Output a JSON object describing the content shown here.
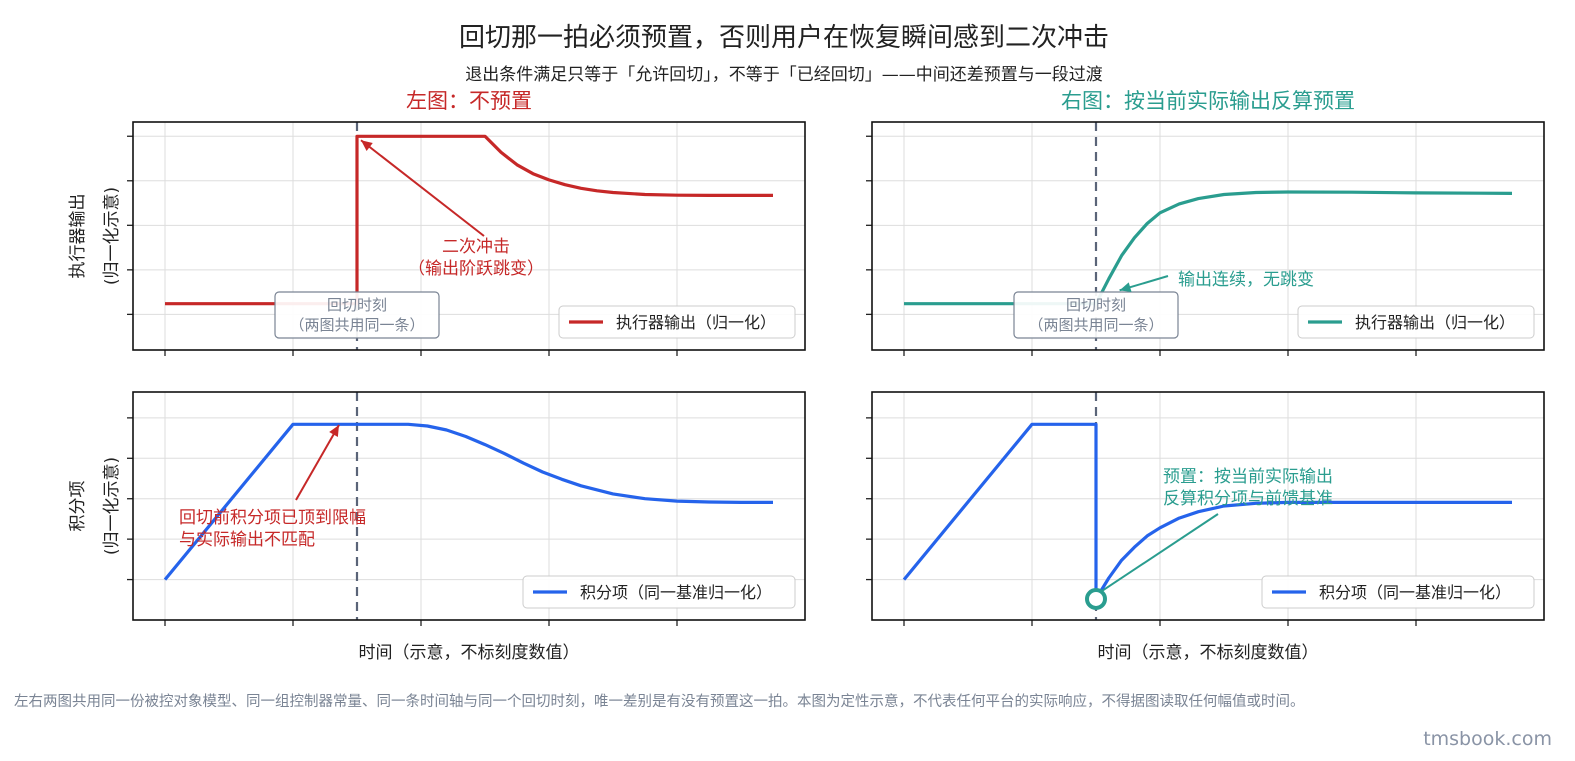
{
  "title": "回切那一拍必须预置，否则用户在恢复瞬间感到二次冲击",
  "subtitle": "退出条件满足只等于「允许回切」，不等于「已经回切」——中间还差预置与一段过渡",
  "footnote": "左右两图共用同一份被控对象模型、同一组控制器常量、同一条时间轴与同一个回切时刻，唯一差别是有没有预置这一拍。本图为定性示意，不代表任何平台的实际响应，不得据图读取任何幅值或时间。",
  "watermark": "tmsbook.com",
  "colors": {
    "red": "#c62828",
    "teal": "#2a9d8f",
    "blue": "#2563eb",
    "vline": "#5a6478",
    "grid": "#dddddd"
  },
  "chart_data": [
    {
      "type": "line",
      "panel": "top-left",
      "title": "左图：不预置",
      "ylabel": "执行器输出\n(归一化示意)",
      "legend": "执行器输出（归一化）",
      "legend_position": "lower right",
      "grid": true,
      "xlim": [
        -0.5,
        10.0
      ],
      "ylim": [
        -0.2,
        1.08
      ],
      "vline_x": 3.0,
      "vline_label": "回切时刻\n（两图共用同一条）",
      "annotations": [
        {
          "text": "二次冲击\n（输出阶跃跳变）",
          "x": 3.0,
          "y": 1.0
        }
      ],
      "series": [
        {
          "name": "执行器输出（归一化）",
          "x": [
            0,
            3.0,
            3.0,
            5.0,
            5.25,
            5.5,
            5.75,
            6.0,
            6.25,
            6.5,
            6.75,
            7.0,
            7.5,
            8.0,
            8.5,
            9.0,
            9.5
          ],
          "y": [
            0.06,
            0.06,
            1.0,
            1.0,
            0.91,
            0.84,
            0.79,
            0.755,
            0.728,
            0.708,
            0.694,
            0.684,
            0.673,
            0.669,
            0.668,
            0.668,
            0.668
          ]
        }
      ]
    },
    {
      "type": "line",
      "panel": "top-right",
      "title": "右图：按当前实际输出反算预置",
      "legend": "执行器输出（归一化）",
      "legend_position": "lower right",
      "grid": true,
      "xlim": [
        -0.5,
        10.0
      ],
      "ylim": [
        -0.2,
        1.08
      ],
      "vline_x": 3.0,
      "vline_label": "回切时刻\n（两图共用同一条）",
      "annotations": [
        {
          "text": "输出连续，无跳变",
          "x": 3.15,
          "y": 0.09
        }
      ],
      "series": [
        {
          "name": "执行器输出（归一化）",
          "x": [
            0,
            3.0,
            3.2,
            3.4,
            3.6,
            3.8,
            4.0,
            4.3,
            4.6,
            5.0,
            5.5,
            6.0,
            7.0,
            8.0,
            9.0,
            9.5
          ],
          "y": [
            0.06,
            0.06,
            0.2,
            0.33,
            0.43,
            0.51,
            0.57,
            0.62,
            0.65,
            0.673,
            0.684,
            0.687,
            0.686,
            0.682,
            0.68,
            0.679
          ]
        }
      ]
    },
    {
      "type": "line",
      "panel": "bottom-left",
      "xlabel": "时间（示意，不标刻度数值）",
      "ylabel": "积分项\n(归一化示意)",
      "legend": "积分项（同一基准归一化）",
      "legend_position": "lower right",
      "grid": true,
      "xlim": [
        -0.5,
        10.0
      ],
      "ylim": [
        -0.25,
        1.16
      ],
      "vline_x": 3.0,
      "annotations": [
        {
          "text": "回切前积分项已顶到限幅\n与实际输出不匹配",
          "x": 2.7,
          "y": 0.95
        }
      ],
      "series": [
        {
          "name": "积分项（同一基准归一化）",
          "x": [
            0,
            2.0,
            3.8,
            4.1,
            4.4,
            4.7,
            5.0,
            5.3,
            5.6,
            5.9,
            6.2,
            6.5,
            7.0,
            7.5,
            8.0,
            8.5,
            9.0,
            9.5
          ],
          "y": [
            0.0,
            0.96,
            0.96,
            0.95,
            0.925,
            0.885,
            0.835,
            0.78,
            0.72,
            0.665,
            0.62,
            0.58,
            0.53,
            0.5,
            0.485,
            0.48,
            0.477,
            0.477
          ]
        }
      ]
    },
    {
      "type": "line",
      "panel": "bottom-right",
      "xlabel": "时间（示意，不标刻度数值）",
      "legend": "积分项（同一基准归一化）",
      "legend_position": "lower right",
      "grid": true,
      "xlim": [
        -0.5,
        10.0
      ],
      "ylim": [
        -0.25,
        1.16
      ],
      "vline_x": 3.0,
      "marker": {
        "x": 3.0,
        "y": -0.12
      },
      "annotations": [
        {
          "text": "预置：按当前实际输出\n反算积分项与前馈基准",
          "x": 3.0,
          "y": -0.12
        }
      ],
      "series": [
        {
          "name": "积分项（同一基准归一化）",
          "x": [
            0,
            2.0,
            3.0,
            3.0,
            3.2,
            3.4,
            3.6,
            3.8,
            4.0,
            4.3,
            4.6,
            5.0,
            5.5,
            6.0,
            7.0,
            8.0,
            9.0,
            9.5
          ],
          "y": [
            0.0,
            0.96,
            0.96,
            -0.12,
            0.01,
            0.12,
            0.2,
            0.27,
            0.32,
            0.38,
            0.42,
            0.455,
            0.472,
            0.477,
            0.477,
            0.477,
            0.477,
            0.477
          ]
        }
      ]
    }
  ]
}
